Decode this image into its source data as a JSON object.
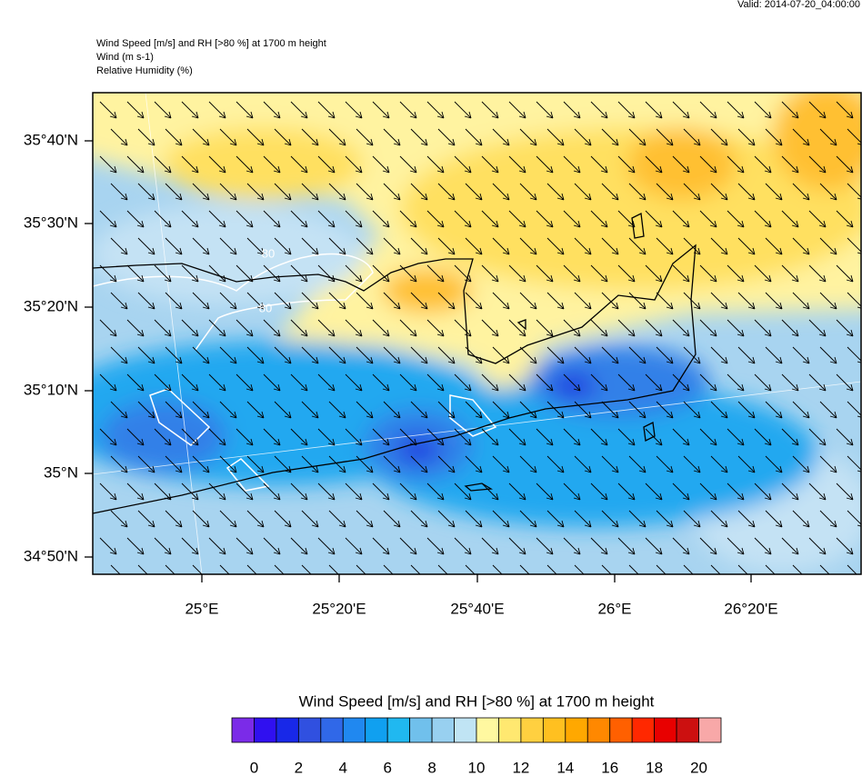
{
  "valid": "Valid: 2014-07-20_04:00:00",
  "header": {
    "lines": [
      "Wind Speed [m/s] and RH [>80 %] at 1700 m height",
      "Wind   (m s-1)",
      "Relative Humidity   (%)"
    ]
  },
  "map": {
    "lat_labels": [
      "35°40'N",
      "35°30'N",
      "35°20'N",
      "35°10'N",
      "35°N",
      "34°50'N"
    ],
    "lon_labels": [
      "25°E",
      "25°20'E",
      "25°40'E",
      "26°E",
      "26°20'E"
    ],
    "contour_labels": [
      "80",
      "80"
    ]
  },
  "colorbar": {
    "title": "Wind Speed [m/s] and RH [>80 %] at 1700 m height",
    "colors": [
      "#7b2be8",
      "#3010f0",
      "#1828e8",
      "#3050e0",
      "#3068e8",
      "#2088f0",
      "#10a0f0",
      "#20b8f0",
      "#70c0ec",
      "#98d0f0",
      "#c0e4f4",
      "#fff8a0",
      "#ffe870",
      "#ffd040",
      "#ffc020",
      "#ffa800",
      "#ff8800",
      "#ff6000",
      "#ff2800",
      "#e80000",
      "#cc1010",
      "#f8a8a8"
    ],
    "ticks": [
      0,
      2,
      4,
      6,
      8,
      10,
      12,
      14,
      16,
      18,
      20
    ]
  }
}
